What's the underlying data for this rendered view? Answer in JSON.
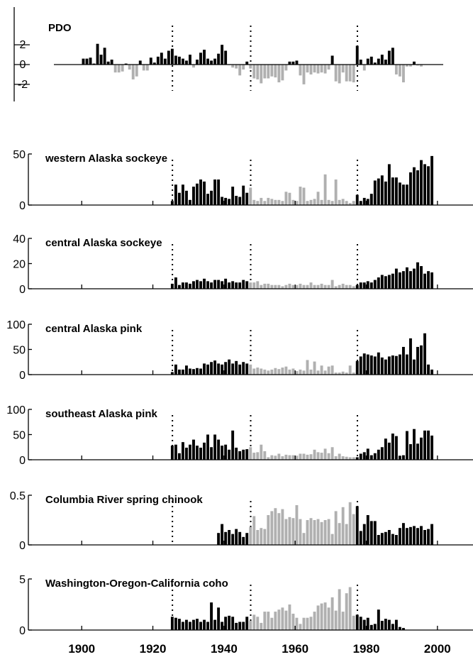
{
  "colors": {
    "positive": "#000000",
    "negative": "#b0b0b0",
    "axis": "#000000",
    "background": "#ffffff"
  },
  "x_ticks": [
    "1900",
    "1920",
    "1940",
    "1960",
    "1980",
    "2000"
  ],
  "chart_data": [
    {
      "type": "bar",
      "title": "PDO",
      "ylim": [
        -2.8,
        2.8
      ],
      "yticks": [
        "2",
        "0",
        "-2"
      ],
      "regime_shifts": [
        1925,
        1947,
        1977
      ],
      "x_range": [
        1900,
        1995
      ],
      "series": [
        {
          "years": [
            1900,
            1901,
            1902,
            1903,
            1904,
            1905,
            1906,
            1907,
            1908,
            1909,
            1910,
            1911,
            1912,
            1913,
            1914,
            1915,
            1916,
            1917,
            1918,
            1919,
            1920,
            1921,
            1922,
            1923,
            1924,
            1925,
            1926,
            1927,
            1928,
            1929,
            1930,
            1931,
            1932,
            1933,
            1934,
            1935,
            1936,
            1937,
            1938,
            1939,
            1940,
            1941,
            1942,
            1943,
            1944,
            1945,
            1946,
            1947,
            1948,
            1949,
            1950,
            1951,
            1952,
            1953,
            1954,
            1955,
            1956,
            1957,
            1958,
            1959,
            1960,
            1961,
            1962,
            1963,
            1964,
            1965,
            1966,
            1967,
            1968,
            1969,
            1970,
            1971,
            1972,
            1973,
            1974,
            1975,
            1976,
            1977,
            1978,
            1979,
            1980,
            1981,
            1982,
            1983,
            1984,
            1985,
            1986,
            1987,
            1988,
            1989,
            1990,
            1991,
            1992,
            1993,
            1994,
            1995
          ],
          "values": [
            0.6,
            0.6,
            0.7,
            0.1,
            2.1,
            1.0,
            1.7,
            0.3,
            0.5,
            -0.8,
            -0.8,
            -0.7,
            0.1,
            -0.5,
            -1.5,
            -1.2,
            0.4,
            -0.6,
            -0.6,
            0.7,
            0.2,
            0.8,
            1.2,
            0.6,
            1.4,
            1.6,
            0.9,
            0.8,
            0.6,
            0.4,
            1.0,
            -0.3,
            0.5,
            1.2,
            1.5,
            0.6,
            0.4,
            0.6,
            1.1,
            2.0,
            1.4,
            0.0,
            -0.3,
            -0.4,
            -1.1,
            -0.5,
            0.3,
            -0.4,
            -1.4,
            -1.5,
            -1.9,
            -1.4,
            -1.4,
            -1.2,
            -1.3,
            -1.8,
            -1.6,
            -0.6,
            0.3,
            0.3,
            0.4,
            -1.1,
            -2.0,
            -0.8,
            -1.0,
            -0.8,
            -0.9,
            -0.8,
            -0.9,
            -0.5,
            0.9,
            -1.7,
            -1.9,
            -0.8,
            -1.7,
            -1.7,
            -1.8,
            1.9,
            0.5,
            -0.6,
            0.6,
            0.8,
            0.2,
            0.6,
            1.0,
            0.5,
            1.4,
            1.7,
            -1.0,
            -1.2,
            -1.8,
            -0.2,
            -0.2,
            0.3,
            -0.1,
            -0.2
          ]
        }
      ]
    },
    {
      "type": "bar",
      "title": "western Alaska sockeye",
      "ylim": [
        0,
        50
      ],
      "yticks": [
        "50",
        "0"
      ],
      "regime_shifts": [
        1925,
        1947,
        1977
      ],
      "series": [
        {
          "start_year": 1925,
          "values": [
            4,
            20,
            12,
            20,
            14,
            5,
            18,
            21,
            25,
            23,
            11,
            14,
            25,
            25,
            8,
            7,
            6,
            18,
            9,
            8,
            19,
            12,
            17,
            5,
            4,
            7,
            4,
            7,
            6,
            5,
            5,
            4,
            13,
            12,
            5,
            4,
            18,
            17,
            4,
            5,
            6,
            13,
            5,
            30,
            5,
            4,
            25,
            5,
            6,
            4,
            2,
            4,
            10,
            4,
            7,
            6,
            11,
            24,
            26,
            29,
            23,
            40,
            27,
            27,
            22,
            20,
            20,
            32,
            37,
            34,
            44,
            40,
            38,
            48
          ]
        }
      ]
    },
    {
      "type": "bar",
      "title": "central Alaska sockeye",
      "ylim": [
        0,
        40
      ],
      "yticks": [
        "40",
        "20",
        "0"
      ],
      "regime_shifts": [
        1925,
        1947,
        1977
      ],
      "series": [
        {
          "start_year": 1925,
          "values": [
            4,
            9,
            3,
            5,
            5,
            4,
            6,
            7,
            6,
            8,
            6,
            5,
            7,
            7,
            6,
            8,
            5,
            6,
            5,
            5,
            7,
            6,
            5,
            5,
            6,
            3,
            4,
            4,
            3,
            3,
            3,
            2,
            3,
            4,
            3,
            3,
            4,
            3,
            3,
            5,
            3,
            3,
            4,
            3,
            3,
            7,
            2,
            3,
            4,
            3,
            3,
            2,
            3,
            5,
            5,
            6,
            5,
            7,
            9,
            11,
            10,
            11,
            12,
            16,
            13,
            14,
            17,
            14,
            16,
            21,
            18,
            12,
            14,
            13
          ]
        }
      ]
    },
    {
      "type": "bar",
      "title": "central Alaska pink",
      "ylim": [
        0,
        100
      ],
      "yticks": [
        "100",
        "50",
        "0"
      ],
      "regime_shifts": [
        1925,
        1947,
        1977
      ],
      "series": [
        {
          "start_year": 1925,
          "values": [
            5,
            20,
            10,
            10,
            18,
            12,
            11,
            13,
            12,
            22,
            20,
            25,
            28,
            22,
            20,
            25,
            30,
            22,
            27,
            20,
            25,
            22,
            20,
            12,
            14,
            12,
            10,
            8,
            10,
            13,
            11,
            14,
            16,
            10,
            12,
            7,
            10,
            8,
            29,
            10,
            26,
            8,
            18,
            8,
            16,
            18,
            4,
            4,
            6,
            4,
            18,
            4,
            27,
            36,
            42,
            40,
            38,
            36,
            44,
            34,
            30,
            36,
            38,
            37,
            40,
            55,
            40,
            72,
            30,
            55,
            58,
            82,
            20,
            10
          ]
        }
      ]
    },
    {
      "type": "bar",
      "title": "southeast Alaska pink",
      "ylim": [
        0,
        100
      ],
      "yticks": [
        "100",
        "50",
        "0"
      ],
      "regime_shifts": [
        1925,
        1947,
        1977
      ],
      "series": [
        {
          "start_year": 1925,
          "values": [
            28,
            30,
            13,
            35,
            24,
            30,
            40,
            28,
            24,
            34,
            50,
            25,
            50,
            40,
            28,
            30,
            20,
            58,
            24,
            17,
            20,
            21,
            25,
            14,
            15,
            30,
            17,
            5,
            9,
            8,
            12,
            7,
            10,
            9,
            9,
            8,
            12,
            12,
            10,
            11,
            20,
            15,
            14,
            22,
            13,
            25,
            7,
            12,
            7,
            6,
            5,
            5,
            5,
            12,
            15,
            22,
            9,
            13,
            20,
            25,
            42,
            34,
            52,
            47,
            8,
            9,
            57,
            31,
            61,
            32,
            44,
            58,
            58,
            48
          ]
        }
      ]
    },
    {
      "type": "bar",
      "title": "Columbia River spring chinook",
      "ylim": [
        0,
        0.5
      ],
      "yticks": [
        "0.5",
        "0"
      ],
      "regime_shifts": [
        1925,
        1947,
        1977
      ],
      "series": [
        {
          "start_year": 1938,
          "values": [
            0.12,
            0.21,
            0.13,
            0.15,
            0.11,
            0.16,
            0.13,
            0.08,
            0.12,
            0.18,
            0.29,
            0.15,
            0.17,
            0.16,
            0.3,
            0.34,
            0.37,
            0.32,
            0.36,
            0.26,
            0.28,
            0.27,
            0.4,
            0.26,
            0.12,
            0.25,
            0.27,
            0.25,
            0.26,
            0.23,
            0.25,
            0.26,
            0.11,
            0.34,
            0.22,
            0.38,
            0.21,
            0.43,
            0.31,
            0.39,
            0.14,
            0.21,
            0.3,
            0.24,
            0.24,
            0.1,
            0.12,
            0.13,
            0.15,
            0.11,
            0.1,
            0.17,
            0.22,
            0.17,
            0.18,
            0.19,
            0.17,
            0.19,
            0.15,
            0.16,
            0.21
          ]
        }
      ]
    },
    {
      "type": "bar",
      "title": "Washington-Oregon-California coho",
      "ylim": [
        0,
        5
      ],
      "yticks": [
        "5",
        "0"
      ],
      "regime_shifts": [
        1925,
        1947,
        1977
      ],
      "series": [
        {
          "start_year": 1925,
          "values": [
            1.3,
            1.2,
            1.1,
            0.8,
            1.0,
            0.8,
            1.0,
            1.1,
            0.8,
            1.0,
            0.8,
            2.7,
            1.0,
            2.2,
            0.8,
            1.3,
            1.4,
            1.3,
            0.7,
            0.8,
            0.8,
            1.3,
            0.9,
            1.5,
            1.3,
            0.7,
            1.8,
            1.8,
            1.2,
            1.8,
            2.0,
            2.2,
            1.9,
            2.5,
            1.6,
            1.2,
            0.6,
            1.2,
            1.2,
            1.3,
            1.8,
            2.4,
            2.6,
            2.7,
            2.2,
            3.2,
            1.9,
            4.0,
            1.8,
            3.6,
            4.2,
            1.4,
            1.5,
            1.3,
            1.0,
            1.2,
            0.5,
            0.6,
            2.0,
            0.9,
            1.1,
            1.0,
            0.6,
            1.0,
            0.3,
            0.2
          ]
        }
      ]
    }
  ]
}
